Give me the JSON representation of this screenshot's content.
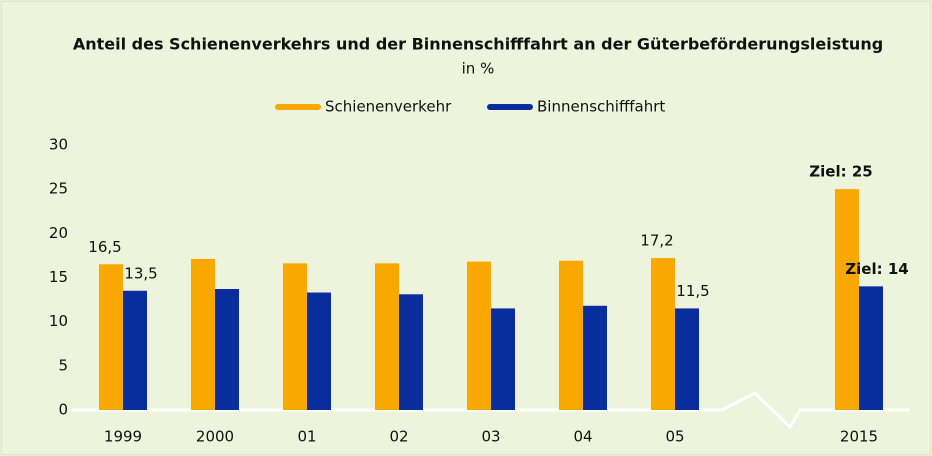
{
  "chart_data": {
    "type": "bar",
    "title": "Anteil des Schienenverkehrs und der Binnenschifffahrt an der Güterbeförderungsleistung",
    "subtitle": "in %",
    "categories": [
      "1999",
      "2000",
      "01",
      "02",
      "03",
      "04",
      "05",
      null,
      "2015"
    ],
    "series": [
      {
        "name": "Schienenverkehr",
        "color": "#f9a800",
        "values": [
          16.5,
          17.1,
          16.6,
          16.6,
          16.8,
          16.9,
          17.2,
          null,
          25
        ],
        "value_labels": [
          "16,5",
          null,
          null,
          null,
          null,
          null,
          "17,2",
          null,
          "Ziel: 25"
        ]
      },
      {
        "name": "Binnenschifffahrt",
        "color": "#0a2d9e",
        "values": [
          13.5,
          13.7,
          13.3,
          13.1,
          11.5,
          11.8,
          11.5,
          null,
          14
        ],
        "value_labels": [
          "13,5",
          null,
          null,
          null,
          null,
          null,
          "11,5",
          null,
          "Ziel: 14"
        ]
      }
    ],
    "ylim": [
      0,
      30
    ],
    "yticks": [
      0,
      5,
      10,
      15,
      20,
      25,
      30
    ],
    "grid": false
  }
}
